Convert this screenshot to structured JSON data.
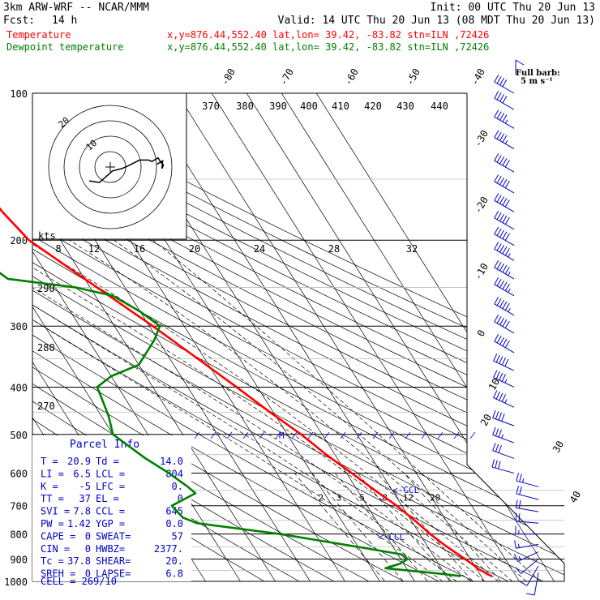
{
  "header": {
    "model": "3km ARW-WRF -- NCAR/MMM",
    "init": "Init: 00 UTC Thu 20 Jun 13",
    "fcst_label": "Fcst:",
    "fcst_value": "14 h",
    "valid": "Valid: 14 UTC Thu 20 Jun 13 (08 MDT Thu 20 Jun 13)",
    "temp_legend": "Temperature",
    "temp_info": "x,y=876.44,552.40   lat,lon= 39.42, -83.82  stn=ILN ,72426",
    "dew_legend": "Dewpoint temperature",
    "dew_info": "x,y=876.44,552.40   lat,lon= 39.42, -83.82  stn=ILN ,72426"
  },
  "colors": {
    "temperature": "#ff0000",
    "dewpoint": "#008000",
    "wind": "#0000c8",
    "parcel_text": "#0000c8",
    "isobar": "#000000",
    "isotherm": "#000000",
    "hodograph": "#000000"
  },
  "wind_legend": {
    "title": "Full barb:",
    "value": "5 m s⁻¹"
  },
  "parcel_info": {
    "title": "Parcel Info",
    "rows": [
      [
        "T    =",
        "20.9",
        "Td   =",
        "14.0"
      ],
      [
        "LI   =",
        "6.5",
        "LCL  =",
        "804"
      ],
      [
        "K    =",
        "-5",
        "LFC  =",
        "0."
      ],
      [
        "TT   =",
        "37",
        "EL   =",
        "0"
      ],
      [
        "SVI  =",
        "7.8",
        "CCL  =",
        "645"
      ],
      [
        "PW   =",
        "1.42",
        "YGP  =",
        "0.0"
      ],
      [
        "CAPE =",
        "0",
        "SWEAT=",
        "57"
      ],
      [
        "CIN  =",
        "0",
        "HWBZ=",
        "2377."
      ],
      [
        "Tc   =",
        "37.8",
        "SHEAR=",
        "20."
      ],
      [
        "SREH =",
        "0",
        "LAPSE=",
        "6.8"
      ]
    ],
    "cell": "CELL = 269/10"
  },
  "annotations": {
    "ccl": "<-CCL",
    "lcl": "<-LCL",
    "max_level": "M"
  },
  "hodograph": {
    "kts_label": "kts",
    "ring_labels": [
      "10",
      "20"
    ],
    "speed_ticks": [
      "8",
      "12",
      "16",
      "20",
      "24",
      "28",
      "32"
    ]
  },
  "theta_labels": [
    "370",
    "380",
    "390",
    "400",
    "410",
    "420",
    "430",
    "440"
  ],
  "theta_w_labels": [
    "290",
    "280",
    "270"
  ],
  "mixing_ratio_labels": [
    "2",
    "3",
    "5",
    "8",
    "12",
    "20"
  ],
  "chart_data": {
    "type": "skew-t",
    "xlabel": "",
    "ylabel": "",
    "pressure_levels": [
      "100",
      "200",
      "300",
      "400",
      "500",
      "600",
      "700",
      "800",
      "900",
      "1000"
    ],
    "isotherm_labels": [
      "-80",
      "-70",
      "-60",
      "-50",
      "-40",
      "-30",
      "-20",
      "-10",
      "0",
      "10",
      "20",
      "30",
      "40"
    ],
    "ylim": [
      1000,
      100
    ],
    "y_scale": "log",
    "series": [
      {
        "name": "Temperature",
        "color": "#ff0000",
        "points": [
          [
            975,
            23
          ],
          [
            965,
            22
          ],
          [
            955,
            21.5
          ],
          [
            945,
            20.5
          ],
          [
            930,
            20
          ],
          [
            900,
            18.5
          ],
          [
            875,
            17
          ],
          [
            850,
            15.5
          ],
          [
            800,
            13
          ],
          [
            750,
            11
          ],
          [
            700,
            8.5
          ],
          [
            650,
            5
          ],
          [
            600,
            1.5
          ],
          [
            550,
            -2.5
          ],
          [
            500,
            -6
          ],
          [
            450,
            -11
          ],
          [
            400,
            -16
          ],
          [
            350,
            -22
          ],
          [
            300,
            -29
          ],
          [
            250,
            -38
          ],
          [
            200,
            -49
          ],
          [
            175,
            -51.5
          ],
          [
            150,
            -53
          ],
          [
            125,
            -56.5
          ],
          [
            100,
            -62
          ]
        ]
      },
      {
        "name": "Dewpoint temperature",
        "color": "#008000",
        "points": [
          [
            975,
            14
          ],
          [
            965,
            9
          ],
          [
            950,
            0
          ],
          [
            940,
            -6
          ],
          [
            920,
            -1
          ],
          [
            900,
            2
          ],
          [
            880,
            1
          ],
          [
            850,
            -10
          ],
          [
            800,
            -30
          ],
          [
            760,
            -52
          ],
          [
            740,
            -55
          ],
          [
            700,
            -56
          ],
          [
            660,
            -47
          ],
          [
            640,
            -48
          ],
          [
            600,
            -51
          ],
          [
            560,
            -55
          ],
          [
            500,
            -60
          ],
          [
            460,
            -58
          ],
          [
            430,
            -57
          ],
          [
            400,
            -56
          ],
          [
            380,
            -50
          ],
          [
            360,
            -40
          ],
          [
            320,
            -31
          ],
          [
            300,
            -27
          ],
          [
            280,
            -30
          ],
          [
            260,
            -35
          ],
          [
            250,
            -44
          ],
          [
            240,
            -62
          ],
          [
            210,
            -68
          ],
          [
            200,
            -65
          ],
          [
            170,
            -60
          ],
          [
            150,
            -58
          ],
          [
            140,
            -56
          ],
          [
            125,
            -53
          ],
          [
            110,
            -52
          ],
          [
            100,
            -49
          ]
        ]
      }
    ],
    "hodograph_uv": [
      [
        -13.7,
        -9.0
      ],
      [
        -7.0,
        -10.0
      ],
      [
        -3.0,
        -6.5
      ],
      [
        1.5,
        -2.5
      ],
      [
        7.5,
        -1.0
      ],
      [
        11.0,
        0.5
      ],
      [
        15.0,
        2.5
      ],
      [
        19.0,
        4.5
      ],
      [
        25.0,
        4.5
      ],
      [
        27.0,
        3.5
      ],
      [
        31.0,
        6.0
      ],
      [
        32.5,
        3.5
      ],
      [
        34.5,
        1.2
      ],
      [
        33.5,
        -1.0
      ],
      [
        34.0,
        4.0
      ],
      [
        30.2,
        1.8
      ]
    ],
    "wind_profile_kt": [
      [
        960,
        190,
        10
      ],
      [
        930,
        210,
        12
      ],
      [
        900,
        230,
        14
      ],
      [
        870,
        245,
        15
      ],
      [
        840,
        260,
        16
      ],
      [
        800,
        270,
        18
      ],
      [
        760,
        275,
        20
      ],
      [
        720,
        280,
        22
      ],
      [
        680,
        285,
        24
      ],
      [
        640,
        285,
        26
      ],
      [
        600,
        285,
        30
      ],
      [
        560,
        290,
        34
      ],
      [
        520,
        290,
        38
      ],
      [
        480,
        290,
        42
      ],
      [
        440,
        295,
        45
      ],
      [
        400,
        295,
        48
      ],
      [
        370,
        295,
        50
      ],
      [
        340,
        300,
        52
      ],
      [
        310,
        300,
        54
      ],
      [
        285,
        300,
        55
      ],
      [
        260,
        300,
        56
      ],
      [
        240,
        300,
        56
      ],
      [
        220,
        300,
        55
      ],
      [
        205,
        300,
        54
      ],
      [
        190,
        300,
        54
      ],
      [
        175,
        300,
        53
      ],
      [
        160,
        300,
        52
      ],
      [
        145,
        300,
        50
      ],
      [
        130,
        300,
        48
      ],
      [
        118,
        300,
        45
      ],
      [
        108,
        300,
        42
      ],
      [
        100,
        300,
        40
      ]
    ]
  }
}
